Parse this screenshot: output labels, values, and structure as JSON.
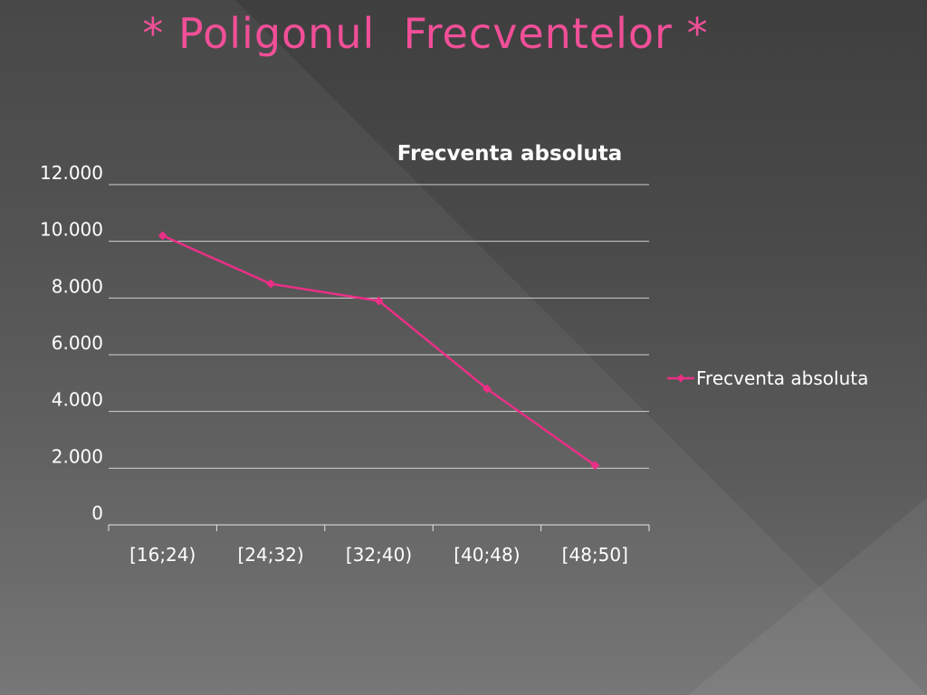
{
  "slide": {
    "title": "* Poligonul  Frecventelor *"
  },
  "colors": {
    "title": "#f14f98",
    "series": "#ea2f86",
    "gridline": "#e6e6e6",
    "text": "#ffffff"
  },
  "chart_data": {
    "type": "line",
    "title": "Frecventa absoluta",
    "categories": [
      "[16;24)",
      "[24;32)",
      "[32;40)",
      "[40;48)",
      "[48;50]"
    ],
    "series": [
      {
        "name": "Frecventa absoluta",
        "values": [
          10200,
          8500,
          7900,
          4800,
          2100
        ],
        "color": "#ea2f86",
        "marker": "diamond"
      }
    ],
    "ylim": [
      0,
      12000
    ],
    "yticks": [
      0,
      2000,
      4000,
      6000,
      8000,
      10000,
      12000
    ],
    "ytick_labels": [
      "0",
      "2.000",
      "4.000",
      "6.000",
      "8.000",
      "10.000",
      "12.000"
    ],
    "grid": true,
    "legend": "right"
  }
}
